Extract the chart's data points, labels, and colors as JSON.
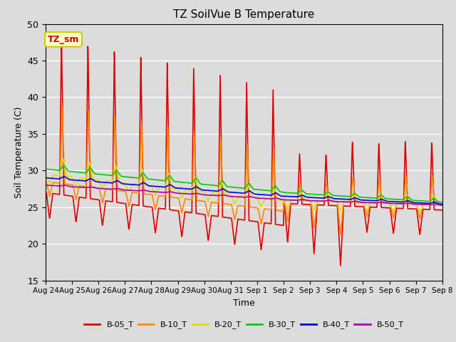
{
  "title": "TZ SoilVue B Temperature",
  "xlabel": "Time",
  "ylabel": "Soil Temperature (C)",
  "ylim": [
    15,
    50
  ],
  "background_color": "#dcdcdc",
  "plot_bg_color": "#dcdcdc",
  "annotation_label": "TZ_sm",
  "annotation_bg": "#ffffcc",
  "annotation_border": "#cccc00",
  "xtick_labels": [
    "Aug 24",
    "Aug 25",
    "Aug 26",
    "Aug 27",
    "Aug 28",
    "Aug 29",
    "Aug 30",
    "Aug 31",
    "Sep 1",
    "Sep 2",
    "Sep 3",
    "Sep 4",
    "Sep 5",
    "Sep 6",
    "Sep 7",
    "Sep 8"
  ],
  "series": {
    "B-05_T": {
      "color": "#dd0000",
      "linewidth": 1.2
    },
    "B-10_T": {
      "color": "#ff8800",
      "linewidth": 1.2
    },
    "B-20_T": {
      "color": "#dddd00",
      "linewidth": 1.2
    },
    "B-30_T": {
      "color": "#00cc00",
      "linewidth": 1.2
    },
    "B-40_T": {
      "color": "#0000dd",
      "linewidth": 1.2
    },
    "B-50_T": {
      "color": "#aa00aa",
      "linewidth": 1.2
    }
  },
  "legend_order": [
    "B-05_T",
    "B-10_T",
    "B-20_T",
    "B-30_T",
    "B-40_T",
    "B-50_T"
  ],
  "n_days": 15,
  "pts_per_day": 144,
  "figsize": [
    6.4,
    4.8
  ],
  "dpi": 100
}
